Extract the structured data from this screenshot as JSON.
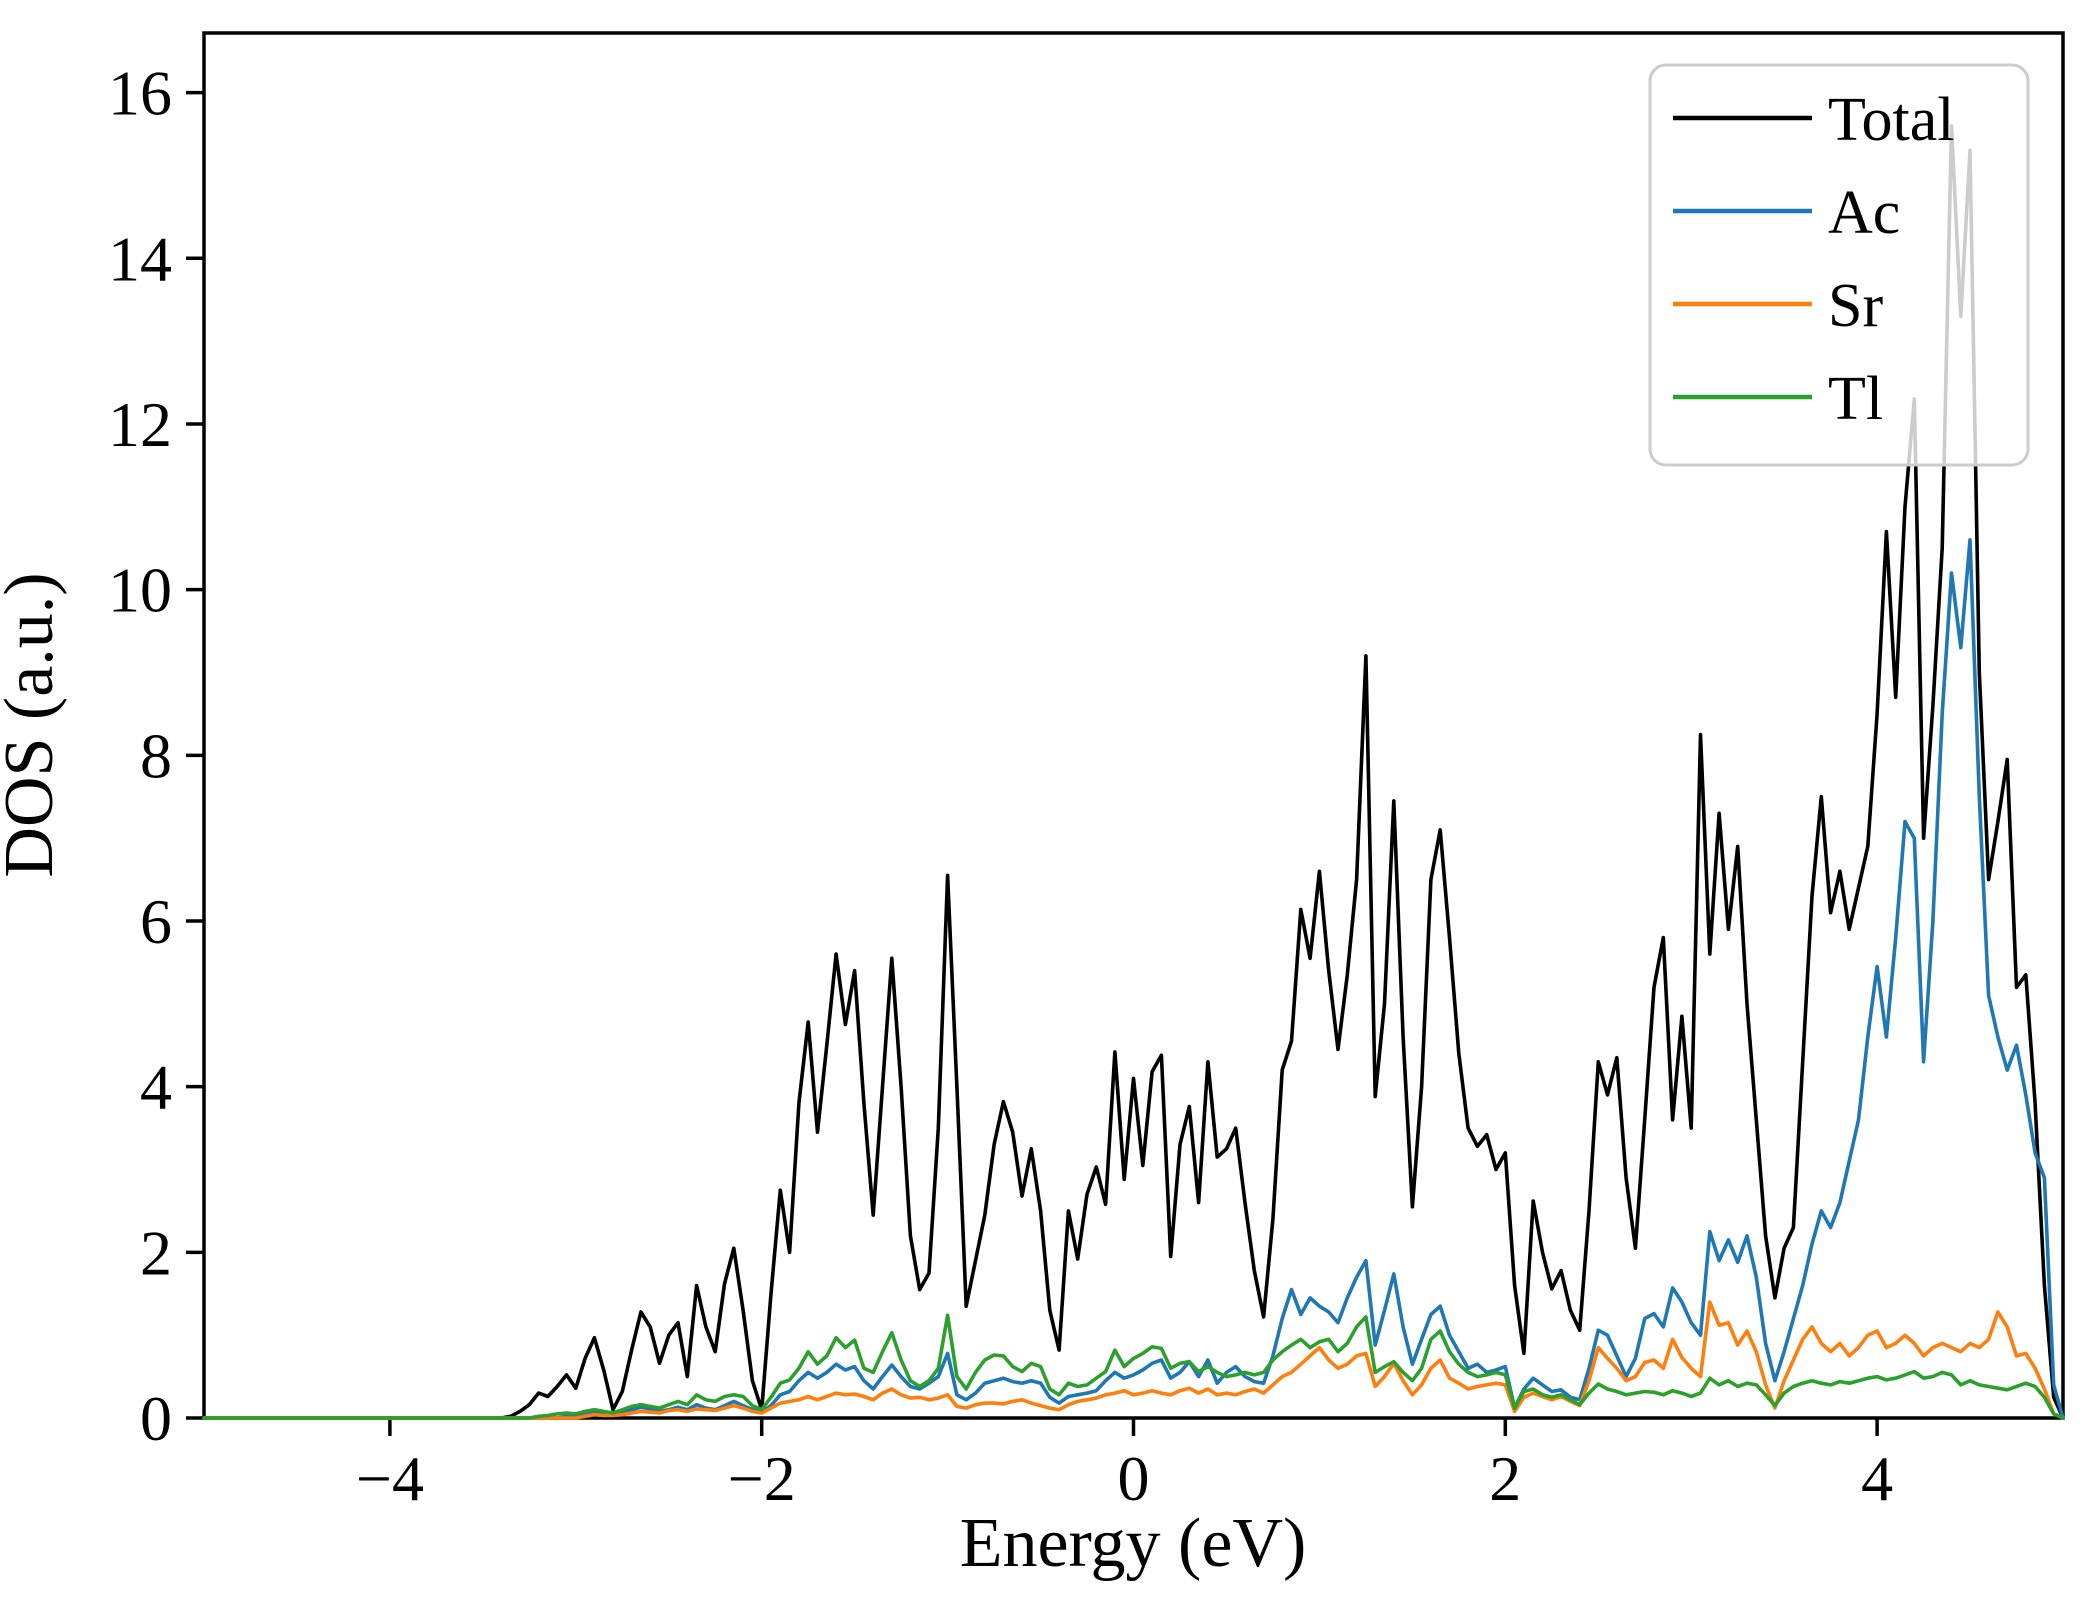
{
  "chart_data": {
    "type": "line",
    "title": "",
    "xlabel": "Energy (eV)",
    "ylabel": "DOS (a.u.)",
    "xlim": [
      -5,
      5
    ],
    "ylim": [
      0,
      16.72
    ],
    "grid": false,
    "x_ticks": [
      {
        "v": -4,
        "label": "−4"
      },
      {
        "v": -2,
        "label": "−2"
      },
      {
        "v": 0,
        "label": "0"
      },
      {
        "v": 2,
        "label": "2"
      },
      {
        "v": 4,
        "label": "4"
      }
    ],
    "y_ticks": [
      {
        "v": 0,
        "label": "0"
      },
      {
        "v": 2,
        "label": "2"
      },
      {
        "v": 4,
        "label": "4"
      },
      {
        "v": 6,
        "label": "6"
      },
      {
        "v": 8,
        "label": "8"
      },
      {
        "v": 10,
        "label": "10"
      },
      {
        "v": 12,
        "label": "12"
      },
      {
        "v": 14,
        "label": "14"
      },
      {
        "v": 16,
        "label": "16"
      }
    ],
    "legend": {
      "position": "upper right",
      "entries": [
        {
          "name": "Total",
          "color": "#000000"
        },
        {
          "name": "Ac",
          "color": "#1f77b4"
        },
        {
          "name": "Sr",
          "color": "#ff7f0e"
        },
        {
          "name": "Tl",
          "color": "#2ca02c"
        }
      ]
    },
    "x_start": -5,
    "x_step": 0.05,
    "series": [
      {
        "name": "Total",
        "color": "#000000",
        "values": [
          0,
          0,
          0,
          0,
          0,
          0,
          0,
          0,
          0,
          0,
          0,
          0,
          0,
          0,
          0,
          0,
          0,
          0,
          0,
          0,
          0,
          0,
          0,
          0,
          0,
          0,
          0,
          0,
          0,
          0,
          0,
          0,
          0,
          0.02,
          0.08,
          0.16,
          0.3,
          0.26,
          0.38,
          0.52,
          0.36,
          0.72,
          0.97,
          0.58,
          0.1,
          0.32,
          0.82,
          1.28,
          1.1,
          0.66,
          1.0,
          1.15,
          0.5,
          1.6,
          1.1,
          0.8,
          1.62,
          2.05,
          1.3,
          0.45,
          0.1,
          1.5,
          2.75,
          2.0,
          3.8,
          4.78,
          3.45,
          4.5,
          5.6,
          4.75,
          5.4,
          3.8,
          2.45,
          4.0,
          5.55,
          4.0,
          2.2,
          1.55,
          1.75,
          3.5,
          6.55,
          4.0,
          1.35,
          1.9,
          2.45,
          3.3,
          3.82,
          3.45,
          2.68,
          3.25,
          2.5,
          1.3,
          0.82,
          2.5,
          1.92,
          2.7,
          3.03,
          2.58,
          4.42,
          2.88,
          4.1,
          3.05,
          4.18,
          4.38,
          1.95,
          3.3,
          3.76,
          2.6,
          4.3,
          3.15,
          3.25,
          3.5,
          2.6,
          1.78,
          1.22,
          2.4,
          4.2,
          4.55,
          6.14,
          5.55,
          6.6,
          5.4,
          4.45,
          5.35,
          6.5,
          9.2,
          3.88,
          5.0,
          7.45,
          4.6,
          2.55,
          4.0,
          6.5,
          7.1,
          5.8,
          4.4,
          3.5,
          3.28,
          3.42,
          3.0,
          3.2,
          1.6,
          0.78,
          2.62,
          2.0,
          1.56,
          1.78,
          1.3,
          1.06,
          2.5,
          4.3,
          3.9,
          4.35,
          2.9,
          2.05,
          3.6,
          5.2,
          5.8,
          3.6,
          4.85,
          3.5,
          8.25,
          5.6,
          7.3,
          5.9,
          6.9,
          5.0,
          3.6,
          2.2,
          1.45,
          2.05,
          2.3,
          4.3,
          6.3,
          7.5,
          6.1,
          6.6,
          5.9,
          6.4,
          6.9,
          8.5,
          10.7,
          8.7,
          11.0,
          12.3,
          7.0,
          8.6,
          10.5,
          15.6,
          13.3,
          15.3,
          9.0,
          6.5,
          7.2,
          7.95,
          5.2,
          5.35,
          3.8,
          1.6,
          0.25,
          0.0
        ]
      },
      {
        "name": "Ac",
        "color": "#1f77b4",
        "values": [
          0,
          0,
          0,
          0,
          0,
          0,
          0,
          0,
          0,
          0,
          0,
          0,
          0,
          0,
          0,
          0,
          0,
          0,
          0,
          0,
          0,
          0,
          0,
          0,
          0,
          0,
          0,
          0,
          0,
          0,
          0,
          0,
          0,
          0,
          0,
          0,
          0,
          0,
          0,
          0.02,
          0.03,
          0.05,
          0.08,
          0.06,
          0.04,
          0.06,
          0.1,
          0.13,
          0.11,
          0.08,
          0.1,
          0.13,
          0.1,
          0.16,
          0.12,
          0.1,
          0.15,
          0.2,
          0.15,
          0.1,
          0.07,
          0.15,
          0.28,
          0.32,
          0.45,
          0.55,
          0.48,
          0.55,
          0.65,
          0.58,
          0.62,
          0.45,
          0.35,
          0.5,
          0.64,
          0.5,
          0.38,
          0.35,
          0.42,
          0.5,
          0.78,
          0.28,
          0.22,
          0.3,
          0.42,
          0.45,
          0.48,
          0.44,
          0.42,
          0.45,
          0.42,
          0.25,
          0.18,
          0.26,
          0.28,
          0.3,
          0.33,
          0.45,
          0.55,
          0.48,
          0.52,
          0.58,
          0.66,
          0.7,
          0.48,
          0.55,
          0.68,
          0.5,
          0.7,
          0.42,
          0.55,
          0.62,
          0.5,
          0.44,
          0.42,
          0.75,
          1.2,
          1.55,
          1.25,
          1.45,
          1.35,
          1.28,
          1.15,
          1.45,
          1.7,
          1.9,
          0.88,
          1.3,
          1.74,
          1.1,
          0.65,
          0.95,
          1.25,
          1.35,
          1.0,
          0.8,
          0.6,
          0.65,
          0.55,
          0.58,
          0.62,
          0.12,
          0.35,
          0.48,
          0.4,
          0.32,
          0.34,
          0.25,
          0.22,
          0.6,
          1.06,
          1.0,
          0.75,
          0.5,
          0.72,
          1.2,
          1.26,
          1.1,
          1.57,
          1.4,
          1.15,
          1.0,
          2.25,
          1.9,
          2.15,
          1.88,
          2.2,
          1.7,
          0.9,
          0.45,
          0.8,
          1.2,
          1.6,
          2.1,
          2.5,
          2.3,
          2.6,
          3.1,
          3.6,
          4.6,
          5.45,
          4.6,
          5.8,
          7.2,
          7.0,
          4.3,
          6.0,
          8.5,
          10.2,
          9.3,
          10.6,
          7.5,
          5.1,
          4.6,
          4.2,
          4.5,
          3.9,
          3.2,
          2.9,
          0.4,
          0.0
        ]
      },
      {
        "name": "Sr",
        "color": "#ff7f0e",
        "values": [
          0,
          0,
          0,
          0,
          0,
          0,
          0,
          0,
          0,
          0,
          0,
          0,
          0,
          0,
          0,
          0,
          0,
          0,
          0,
          0,
          0,
          0,
          0,
          0,
          0,
          0,
          0,
          0,
          0,
          0,
          0,
          0,
          0,
          0,
          0,
          0,
          0,
          0,
          0,
          0,
          0,
          0.02,
          0.04,
          0.03,
          0.03,
          0.04,
          0.06,
          0.08,
          0.07,
          0.06,
          0.09,
          0.1,
          0.08,
          0.11,
          0.1,
          0.09,
          0.12,
          0.15,
          0.12,
          0.08,
          0.06,
          0.12,
          0.18,
          0.2,
          0.22,
          0.26,
          0.22,
          0.26,
          0.3,
          0.28,
          0.29,
          0.26,
          0.22,
          0.3,
          0.35,
          0.28,
          0.24,
          0.25,
          0.22,
          0.24,
          0.28,
          0.14,
          0.12,
          0.16,
          0.18,
          0.18,
          0.17,
          0.2,
          0.22,
          0.18,
          0.15,
          0.12,
          0.1,
          0.16,
          0.2,
          0.22,
          0.24,
          0.28,
          0.3,
          0.33,
          0.28,
          0.3,
          0.33,
          0.3,
          0.28,
          0.33,
          0.36,
          0.3,
          0.35,
          0.28,
          0.3,
          0.28,
          0.32,
          0.35,
          0.3,
          0.4,
          0.5,
          0.55,
          0.65,
          0.75,
          0.85,
          0.7,
          0.6,
          0.65,
          0.75,
          0.78,
          0.38,
          0.5,
          0.66,
          0.45,
          0.28,
          0.4,
          0.6,
          0.7,
          0.48,
          0.42,
          0.35,
          0.38,
          0.4,
          0.42,
          0.4,
          0.08,
          0.25,
          0.3,
          0.26,
          0.22,
          0.26,
          0.2,
          0.15,
          0.45,
          0.85,
          0.72,
          0.6,
          0.45,
          0.5,
          0.67,
          0.7,
          0.6,
          0.95,
          0.73,
          0.6,
          0.5,
          1.4,
          1.12,
          1.15,
          0.88,
          1.05,
          0.8,
          0.4,
          0.12,
          0.45,
          0.7,
          0.95,
          1.1,
          0.9,
          0.8,
          0.9,
          0.75,
          0.85,
          1.0,
          1.05,
          0.85,
          0.9,
          1.0,
          0.9,
          0.75,
          0.85,
          0.9,
          0.85,
          0.8,
          0.9,
          0.85,
          0.95,
          1.28,
          1.1,
          0.75,
          0.78,
          0.6,
          0.35,
          0.05,
          0.0
        ]
      },
      {
        "name": "Tl",
        "color": "#2ca02c",
        "values": [
          0,
          0,
          0,
          0,
          0,
          0,
          0,
          0,
          0,
          0,
          0,
          0,
          0,
          0,
          0,
          0,
          0,
          0,
          0,
          0,
          0,
          0,
          0,
          0,
          0,
          0,
          0,
          0,
          0,
          0,
          0,
          0,
          0,
          0,
          0,
          0,
          0.02,
          0.03,
          0.05,
          0.06,
          0.05,
          0.08,
          0.1,
          0.08,
          0.06,
          0.1,
          0.14,
          0.16,
          0.14,
          0.12,
          0.16,
          0.2,
          0.16,
          0.28,
          0.22,
          0.2,
          0.26,
          0.28,
          0.26,
          0.15,
          0.1,
          0.25,
          0.42,
          0.46,
          0.6,
          0.8,
          0.65,
          0.75,
          0.97,
          0.85,
          0.94,
          0.6,
          0.55,
          0.8,
          1.03,
          0.7,
          0.45,
          0.38,
          0.45,
          0.6,
          1.24,
          0.5,
          0.35,
          0.55,
          0.7,
          0.76,
          0.75,
          0.62,
          0.56,
          0.66,
          0.62,
          0.35,
          0.28,
          0.42,
          0.38,
          0.4,
          0.48,
          0.56,
          0.82,
          0.62,
          0.72,
          0.78,
          0.86,
          0.84,
          0.6,
          0.66,
          0.68,
          0.56,
          0.62,
          0.55,
          0.5,
          0.52,
          0.55,
          0.52,
          0.55,
          0.7,
          0.8,
          0.88,
          0.95,
          0.85,
          0.92,
          0.95,
          0.8,
          0.9,
          1.1,
          1.22,
          0.55,
          0.62,
          0.68,
          0.55,
          0.45,
          0.6,
          0.95,
          1.05,
          0.8,
          0.65,
          0.55,
          0.5,
          0.52,
          0.55,
          0.52,
          0.12,
          0.32,
          0.35,
          0.28,
          0.25,
          0.28,
          0.22,
          0.16,
          0.3,
          0.41,
          0.35,
          0.32,
          0.28,
          0.3,
          0.32,
          0.31,
          0.28,
          0.33,
          0.3,
          0.26,
          0.3,
          0.48,
          0.4,
          0.45,
          0.38,
          0.42,
          0.4,
          0.28,
          0.15,
          0.3,
          0.38,
          0.42,
          0.45,
          0.42,
          0.4,
          0.44,
          0.42,
          0.45,
          0.48,
          0.5,
          0.46,
          0.48,
          0.52,
          0.56,
          0.48,
          0.5,
          0.55,
          0.52,
          0.4,
          0.45,
          0.4,
          0.38,
          0.36,
          0.34,
          0.38,
          0.42,
          0.38,
          0.25,
          0.05,
          0.0
        ]
      }
    ]
  }
}
